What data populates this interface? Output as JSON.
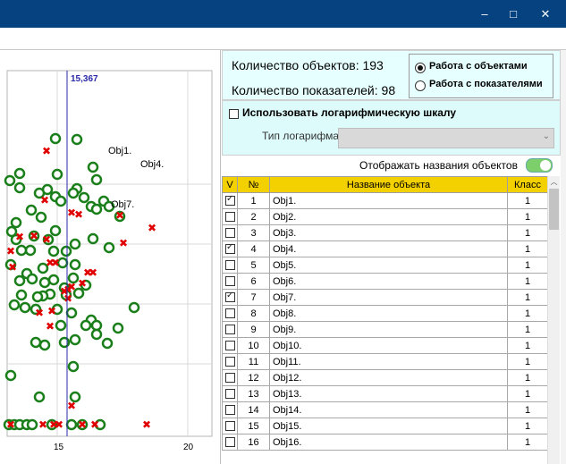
{
  "window": {
    "minimize_glyph": "–",
    "maximize_glyph": "□",
    "close_glyph": "✕"
  },
  "info": {
    "objects_count_label": "Количество объектов: 193",
    "indicators_count_label": "Количество показателей: 98"
  },
  "mode": {
    "options": [
      "Работа с объектами",
      "Работа с показателями"
    ],
    "selected": "Работа с объектами"
  },
  "log_scale": {
    "checkbox_label": "Использовать логарифмическую шкалу",
    "checked": false,
    "type_label": "Тип логарифма:",
    "type_value": ""
  },
  "show_names": {
    "label": "Отображать названия объектов",
    "enabled": true
  },
  "table": {
    "headers": [
      "V",
      "№",
      "Название объекта",
      "Класс"
    ],
    "rows": [
      {
        "checked": true,
        "num": "1",
        "name": "Obj1.",
        "class": "1"
      },
      {
        "checked": false,
        "num": "2",
        "name": "Obj2.",
        "class": "1"
      },
      {
        "checked": false,
        "num": "3",
        "name": "Obj3.",
        "class": "1"
      },
      {
        "checked": true,
        "num": "4",
        "name": "Obj4.",
        "class": "1"
      },
      {
        "checked": false,
        "num": "5",
        "name": "Obj5.",
        "class": "1"
      },
      {
        "checked": false,
        "num": "6",
        "name": "Obj6.",
        "class": "1"
      },
      {
        "checked": true,
        "num": "7",
        "name": "Obj7.",
        "class": "1"
      },
      {
        "checked": false,
        "num": "8",
        "name": "Obj8.",
        "class": "1"
      },
      {
        "checked": false,
        "num": "9",
        "name": "Obj9.",
        "class": "1"
      },
      {
        "checked": false,
        "num": "10",
        "name": "Obj10.",
        "class": "1"
      },
      {
        "checked": false,
        "num": "11",
        "name": "Obj11.",
        "class": "1"
      },
      {
        "checked": false,
        "num": "12",
        "name": "Obj12.",
        "class": "1"
      },
      {
        "checked": false,
        "num": "13",
        "name": "Obj13.",
        "class": "1"
      },
      {
        "checked": false,
        "num": "14",
        "name": "Obj14.",
        "class": "1"
      },
      {
        "checked": false,
        "num": "15",
        "name": "Obj15.",
        "class": "1"
      },
      {
        "checked": false,
        "num": "16",
        "name": "Obj16.",
        "class": "1"
      }
    ]
  },
  "plot": {
    "cursor_label": "15,367",
    "cursor_x": 15.367,
    "x_ticks": [
      "15",
      "20"
    ],
    "labels": [
      "Obj1.",
      "Obj4.",
      "Obj7."
    ],
    "circle_color": "#1a7f1a",
    "cross_color": "#e00000",
    "cursor_color": "#2a2aa8"
  },
  "colors": {
    "titlebar": "#05427f",
    "info_bg": "#e6ffff",
    "header_yellow": "#f3d000",
    "toggle_green": "#7ccf6b"
  }
}
